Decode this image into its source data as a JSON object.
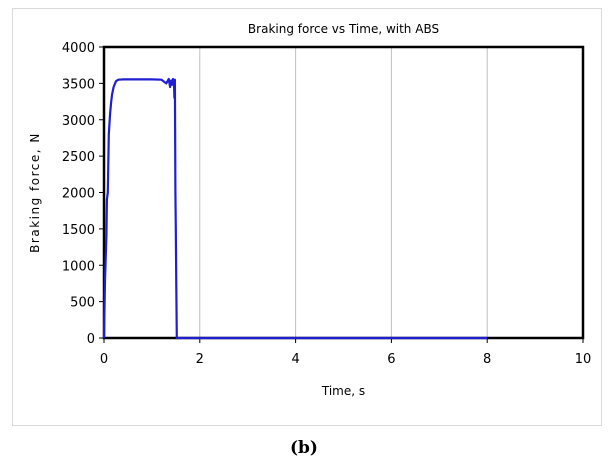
{
  "caption": "(b)",
  "chart_data": {
    "type": "line",
    "title": "Braking force vs Time, with ABS",
    "xlabel": "Time, s",
    "ylabel": "Braking force, N",
    "xlim": [
      0,
      10
    ],
    "ylim": [
      0,
      4000
    ],
    "xticks": [
      0,
      2,
      4,
      6,
      8,
      10
    ],
    "yticks": [
      0,
      500,
      1000,
      1500,
      2000,
      2500,
      3000,
      3500,
      4000
    ],
    "grid": "vertical",
    "legend": "none",
    "series": [
      {
        "color": "#1f1fd1",
        "x": [
          0,
          0.02,
          0.05,
          0.06,
          0.08,
          0.09,
          0.1,
          0.12,
          0.13,
          0.15,
          0.17,
          0.2,
          0.25,
          0.3,
          0.4,
          0.6,
          0.8,
          1.0,
          1.2,
          1.3,
          1.35,
          1.38,
          1.4,
          1.42,
          1.44,
          1.45,
          1.46,
          1.47,
          1.48,
          1.49,
          1.5,
          1.51,
          1.52,
          1.53,
          2,
          4,
          6,
          8
        ],
        "y": [
          0,
          800,
          1400,
          1900,
          2000,
          2400,
          2800,
          3000,
          3100,
          3250,
          3350,
          3450,
          3530,
          3550,
          3555,
          3555,
          3555,
          3555,
          3550,
          3500,
          3560,
          3450,
          3540,
          3480,
          3560,
          3520,
          3540,
          3300,
          3550,
          2000,
          1500,
          700,
          0,
          0,
          0,
          0,
          0,
          0
        ]
      }
    ]
  }
}
